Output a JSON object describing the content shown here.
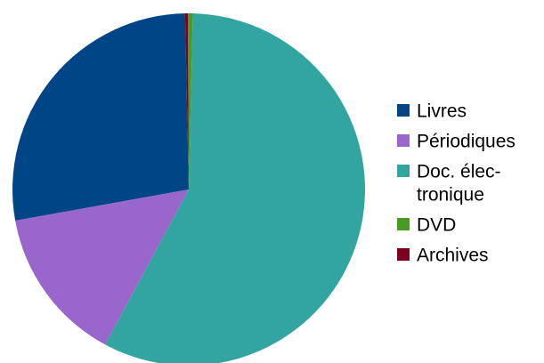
{
  "chart_data": {
    "type": "pie",
    "title": "",
    "slices": [
      {
        "label": "Livres",
        "value": 27.5,
        "color": "#004586"
      },
      {
        "label": "Périodiques",
        "value": 14.3,
        "color": "#9966cc"
      },
      {
        "label": "Doc. électronique",
        "value": 57.5,
        "color": "#33a5a0"
      },
      {
        "label": "DVD",
        "value": 0.45,
        "color": "#4a9a23"
      },
      {
        "label": "Archives",
        "value": 0.25,
        "color": "#7e0021"
      }
    ],
    "start_angle_deg": -1.2,
    "direction": "counterclockwise",
    "legend_position": "right"
  },
  "legend": {
    "items": [
      {
        "lines": [
          "Livres"
        ],
        "color": "#004586"
      },
      {
        "lines": [
          "Périodiques"
        ],
        "color": "#9966cc"
      },
      {
        "lines": [
          "Doc. élec-",
          "tronique"
        ],
        "color": "#33a5a0"
      },
      {
        "lines": [
          "DVD"
        ],
        "color": "#4a9a23"
      },
      {
        "lines": [
          "Archives"
        ],
        "color": "#7e0021"
      }
    ]
  }
}
